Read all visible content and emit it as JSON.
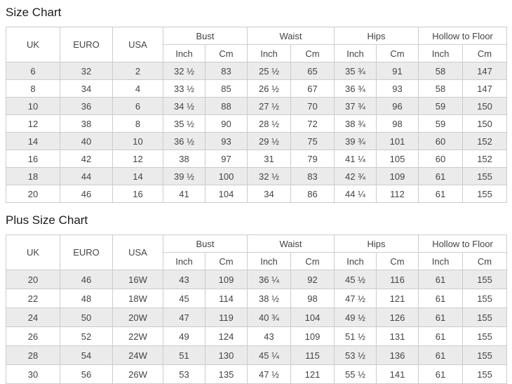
{
  "colors": {
    "stripe": "#ebebeb",
    "border": "#cccccc",
    "text": "#444444",
    "title": "#1b1b1b"
  },
  "size_chart": {
    "title": "Size Chart",
    "main_headers": [
      "UK",
      "EURO",
      "USA"
    ],
    "group_headers": [
      "Bust",
      "Waist",
      "Hips",
      "Hollow to Floor"
    ],
    "unit_headers": [
      "Inch",
      "Cm",
      "Inch",
      "Cm",
      "Inch",
      "Cm",
      "Inch",
      "Cm"
    ],
    "rows": [
      [
        "6",
        "32",
        "2",
        "32 ½",
        "83",
        "25 ½",
        "65",
        "35 ¾",
        "91",
        "58",
        "147"
      ],
      [
        "8",
        "34",
        "4",
        "33 ½",
        "85",
        "26 ½",
        "67",
        "36 ¾",
        "93",
        "58",
        "147"
      ],
      [
        "10",
        "36",
        "6",
        "34 ½",
        "88",
        "27 ½",
        "70",
        "37 ¾",
        "96",
        "59",
        "150"
      ],
      [
        "12",
        "38",
        "8",
        "35 ½",
        "90",
        "28 ½",
        "72",
        "38 ¾",
        "98",
        "59",
        "150"
      ],
      [
        "14",
        "40",
        "10",
        "36 ½",
        "93",
        "29 ½",
        "75",
        "39 ¾",
        "101",
        "60",
        "152"
      ],
      [
        "16",
        "42",
        "12",
        "38",
        "97",
        "31",
        "79",
        "41 ¼",
        "105",
        "60",
        "152"
      ],
      [
        "18",
        "44",
        "14",
        "39 ½",
        "100",
        "32 ½",
        "83",
        "42 ¾",
        "109",
        "61",
        "155"
      ],
      [
        "20",
        "46",
        "16",
        "41",
        "104",
        "34",
        "86",
        "44 ¼",
        "112",
        "61",
        "155"
      ]
    ]
  },
  "plus_size_chart": {
    "title": "Plus Size Chart",
    "main_headers": [
      "UK",
      "EURO",
      "USA"
    ],
    "group_headers": [
      "Bust",
      "Waist",
      "Hips",
      "Hollow to Floor"
    ],
    "unit_headers": [
      "Inch",
      "Cm",
      "Inch",
      "Cm",
      "Inch",
      "Cm",
      "Inch",
      "Cm"
    ],
    "rows": [
      [
        "20",
        "46",
        "16W",
        "43",
        "109",
        "36 ¼",
        "92",
        "45 ½",
        "116",
        "61",
        "155"
      ],
      [
        "22",
        "48",
        "18W",
        "45",
        "114",
        "38 ½",
        "98",
        "47 ½",
        "121",
        "61",
        "155"
      ],
      [
        "24",
        "50",
        "20W",
        "47",
        "119",
        "40 ¾",
        "104",
        "49 ½",
        "126",
        "61",
        "155"
      ],
      [
        "26",
        "52",
        "22W",
        "49",
        "124",
        "43",
        "109",
        "51 ½",
        "131",
        "61",
        "155"
      ],
      [
        "28",
        "54",
        "24W",
        "51",
        "130",
        "45 ¼",
        "115",
        "53 ½",
        "136",
        "61",
        "155"
      ],
      [
        "30",
        "56",
        "26W",
        "53",
        "135",
        "47 ½",
        "121",
        "55 ½",
        "141",
        "61",
        "155"
      ]
    ]
  }
}
